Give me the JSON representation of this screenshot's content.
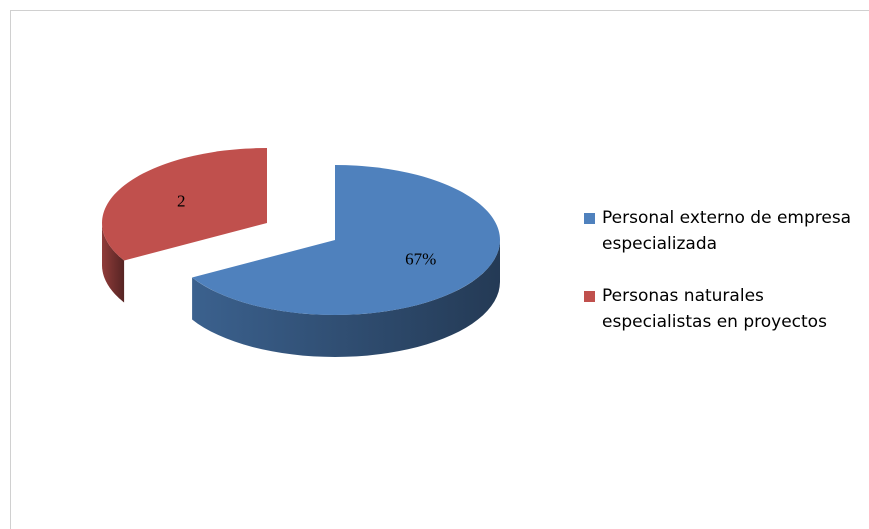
{
  "chart_data": {
    "type": "pie",
    "categories": [
      "Personal externo de empresa especializada",
      "Personas naturales especialistas en proyectos"
    ],
    "values": [
      4,
      2
    ],
    "value_labels": [
      "67%",
      "2"
    ],
    "colors": [
      "#4f81bd",
      "#c0504d"
    ],
    "legend": "right"
  }
}
